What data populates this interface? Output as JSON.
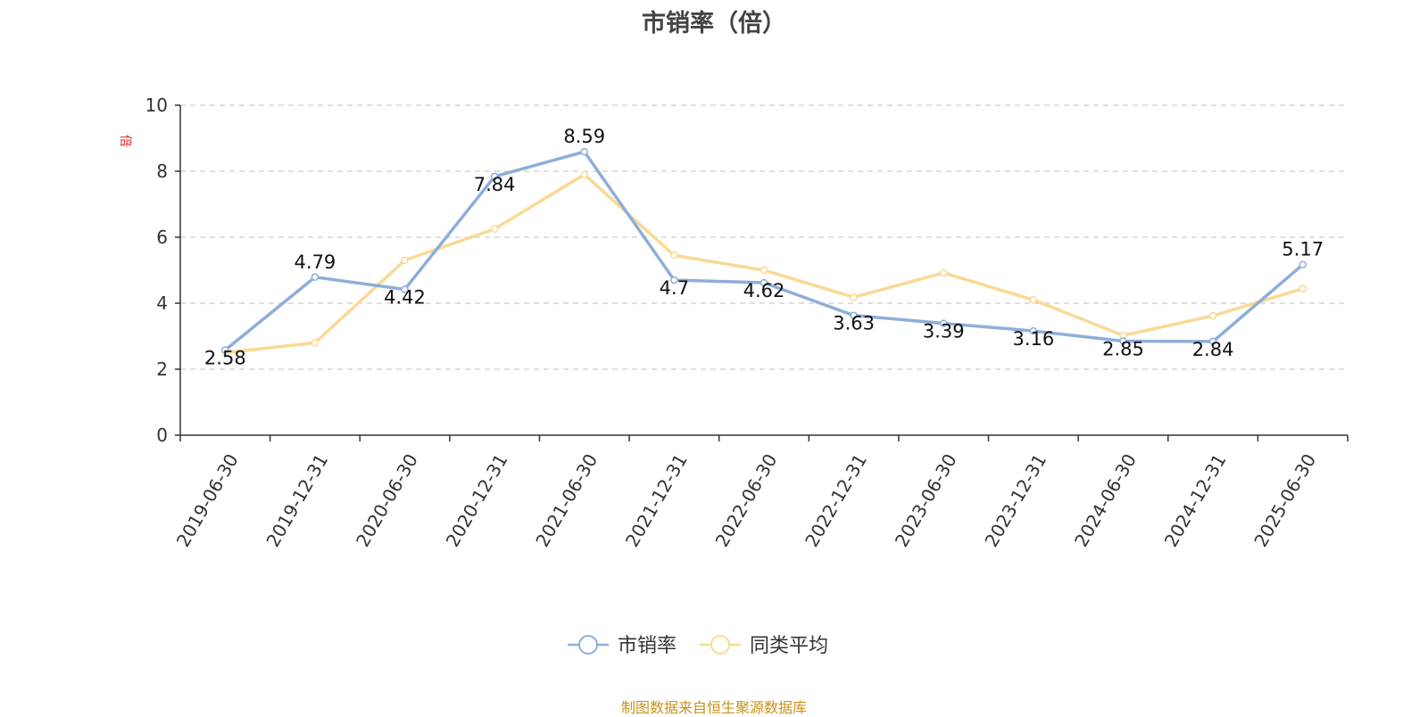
{
  "chart_data": {
    "type": "line",
    "title": "市销率（倍）",
    "ylabel": "倍",
    "xlabel": "",
    "ylim": [
      0,
      10
    ],
    "yticks": [
      0,
      2,
      4,
      6,
      8,
      10
    ],
    "grid": true,
    "legend_position": "bottom-center",
    "categories": [
      "2019-06-30",
      "2019-12-31",
      "2020-06-30",
      "2020-12-31",
      "2021-06-30",
      "2021-12-31",
      "2022-06-30",
      "2022-12-31",
      "2023-06-30",
      "2023-12-31",
      "2024-06-30",
      "2024-12-31",
      "2025-06-30"
    ],
    "series": [
      {
        "name": "市销率",
        "color": "#8eaed8",
        "values": [
          2.58,
          4.79,
          4.42,
          7.84,
          8.59,
          4.7,
          4.62,
          3.63,
          3.39,
          3.16,
          2.85,
          2.84,
          5.17
        ],
        "show_labels": true
      },
      {
        "name": "同类平均",
        "color": "#fad995",
        "values": [
          2.5,
          2.8,
          5.3,
          6.25,
          7.9,
          5.45,
          5.0,
          4.18,
          4.92,
          4.1,
          3.02,
          3.62,
          4.44
        ],
        "show_labels": false
      }
    ]
  },
  "footer": {
    "source": "制图数据来自恒生聚源数据库"
  },
  "colors": {
    "ylabel": "#e02020",
    "footer": "#c8911a"
  }
}
